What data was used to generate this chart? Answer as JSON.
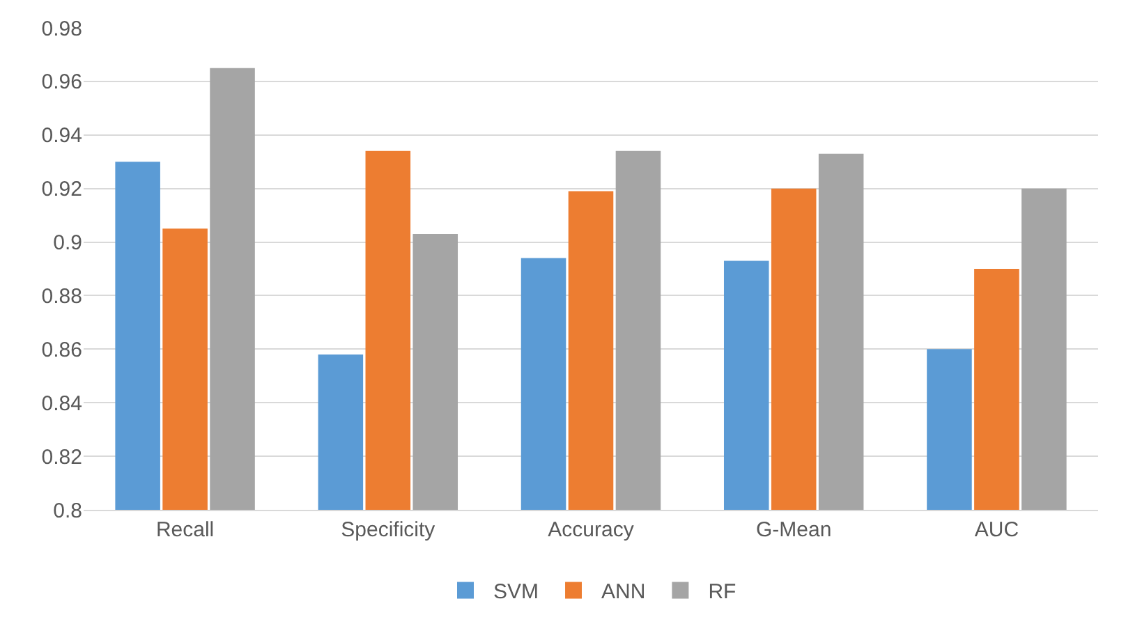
{
  "chart_data": {
    "type": "bar",
    "categories": [
      "Recall",
      "Specificity",
      "Accuracy",
      "G-Mean",
      "AUC"
    ],
    "series": [
      {
        "name": "SVM",
        "color": "#5b9bd5",
        "values": [
          0.93,
          0.858,
          0.894,
          0.893,
          0.86
        ]
      },
      {
        "name": "ANN",
        "color": "#ed7d31",
        "values": [
          0.905,
          0.934,
          0.919,
          0.92,
          0.89
        ]
      },
      {
        "name": "RF",
        "color": "#a5a5a5",
        "values": [
          0.965,
          0.903,
          0.934,
          0.933,
          0.92
        ]
      }
    ],
    "ylim": [
      0.8,
      0.98
    ],
    "yticks": [
      0.8,
      0.82,
      0.84,
      0.86,
      0.88,
      0.9,
      0.92,
      0.94,
      0.96,
      0.98
    ],
    "grid": "y",
    "legend": "bottom"
  }
}
